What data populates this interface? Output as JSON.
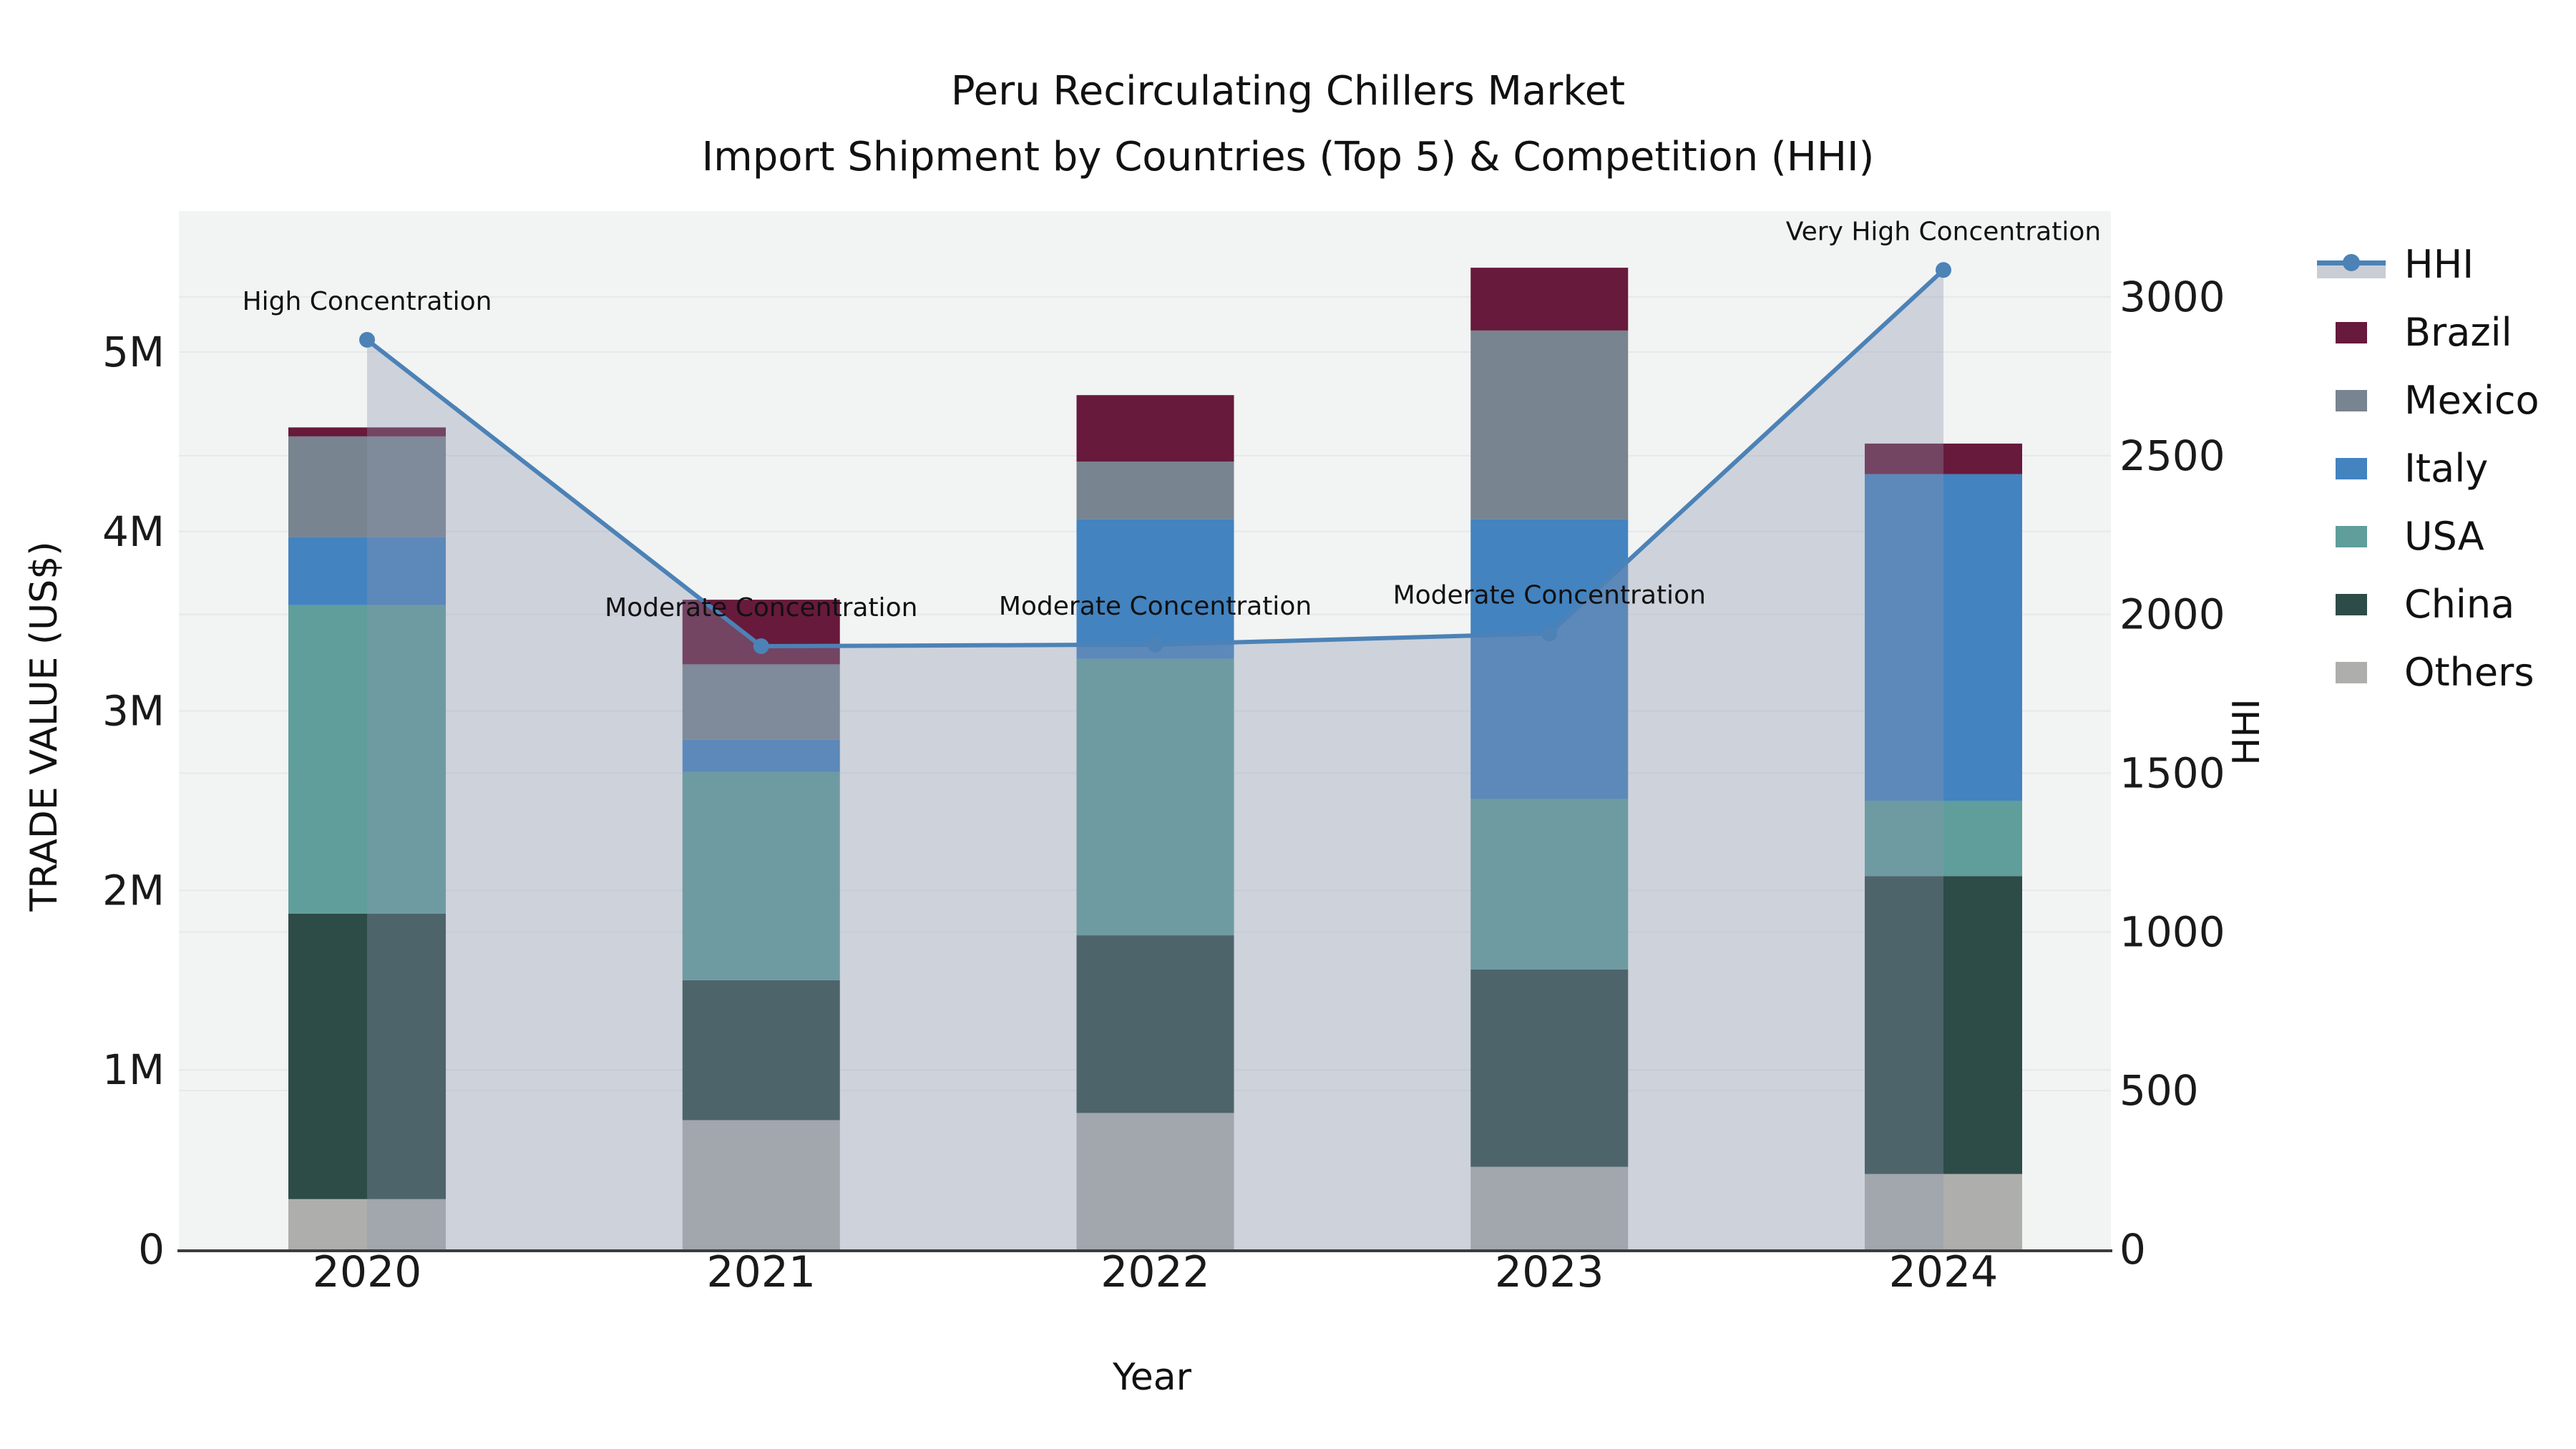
{
  "title": {
    "line1": "Peru Recirculating Chillers Market",
    "line2": "Import Shipment by Countries (Top 5) & Competition (HHI)"
  },
  "axes": {
    "x": {
      "label": "Year",
      "tick_labels": [
        "2020",
        "2021",
        "2022",
        "2023",
        "2024"
      ]
    },
    "y_left": {
      "label": "TRADE VALUE (US$)",
      "tick_labels": [
        "0",
        "1M",
        "2M",
        "3M",
        "4M",
        "5M"
      ],
      "tick_values_m": [
        0,
        1,
        2,
        3,
        4,
        5
      ],
      "range_m": [
        0,
        5.8
      ]
    },
    "y_right": {
      "label": "HHI",
      "tick_labels": [
        "0",
        "500",
        "1000",
        "1500",
        "2000",
        "2500",
        "3000"
      ],
      "tick_values": [
        0,
        500,
        1000,
        1500,
        2000,
        2500,
        3000
      ],
      "range": [
        0,
        3280
      ]
    }
  },
  "legend": [
    {
      "label": "HHI",
      "type": "line",
      "color": "#4c82b6"
    },
    {
      "label": "Brazil",
      "type": "swatch",
      "color": "#671a3b"
    },
    {
      "label": "Mexico",
      "type": "swatch",
      "color": "#78848f"
    },
    {
      "label": "Italy",
      "type": "swatch",
      "color": "#4383c0"
    },
    {
      "label": "USA",
      "type": "swatch",
      "color": "#5f9e9b"
    },
    {
      "label": "China",
      "type": "swatch",
      "color": "#2d4b47"
    },
    {
      "label": "Others",
      "type": "swatch",
      "color": "#aeafac"
    }
  ],
  "chart_data": {
    "type": "bar",
    "subtype": "stacked-bars-with-secondary-axis-line",
    "title": "Peru Recirculating Chillers Market — Import Shipment by Countries (Top 5) & Competition (HHI)",
    "xlabel": "Year",
    "ylabel": "TRADE VALUE (US$)",
    "y2label": "HHI",
    "categories": [
      "2020",
      "2021",
      "2022",
      "2023",
      "2024"
    ],
    "unit": "Million US$",
    "grid": true,
    "legend_position": "right",
    "series": [
      {
        "name": "Others",
        "color": "#aeafac",
        "values": [
          0.28,
          0.72,
          0.76,
          0.46,
          0.42
        ]
      },
      {
        "name": "China",
        "color": "#2d4b47",
        "values": [
          1.59,
          0.78,
          0.99,
          1.1,
          1.66
        ]
      },
      {
        "name": "USA",
        "color": "#5f9e9b",
        "values": [
          1.72,
          1.16,
          1.54,
          0.95,
          0.42
        ]
      },
      {
        "name": "Italy",
        "color": "#4383c0",
        "values": [
          0.38,
          0.18,
          0.78,
          1.56,
          1.82
        ]
      },
      {
        "name": "Mexico",
        "color": "#78848f",
        "values": [
          0.56,
          0.42,
          0.32,
          1.05,
          0.0
        ]
      },
      {
        "name": "Brazil",
        "color": "#671a3b",
        "values": [
          0.05,
          0.36,
          0.37,
          0.35,
          0.17
        ]
      }
    ],
    "line_series": {
      "name": "HHI",
      "axis": "right",
      "color": "#4c82b6",
      "area_fill": "rgba(140,150,175,0.35)",
      "marker": "circle",
      "values": [
        2865,
        1900,
        1905,
        1940,
        3085
      ]
    },
    "annotations": [
      {
        "x": "2020",
        "text": "High Concentration"
      },
      {
        "x": "2021",
        "text": "Moderate Concentration"
      },
      {
        "x": "2022",
        "text": "Moderate Concentration"
      },
      {
        "x": "2023",
        "text": "Moderate Concentration"
      },
      {
        "x": "2024",
        "text": "Very High Concentration"
      }
    ]
  },
  "colors": {
    "page_bg": "#ffffff",
    "plot_bg": "#f2f3f3",
    "grid": "#e6e8eb",
    "axis_line": "#3c3c3c",
    "tick_text": "#1a1a1a",
    "annotation_text": "#111111",
    "legend_band": "#c9cdd6"
  }
}
